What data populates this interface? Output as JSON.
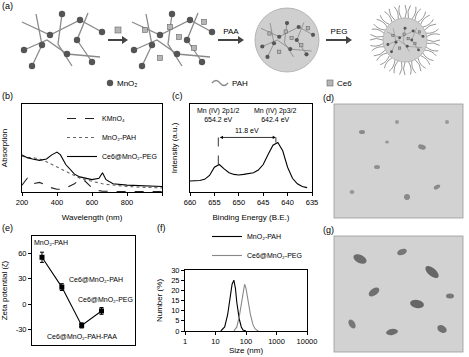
{
  "panels": {
    "a": {
      "label": "(a)",
      "legend": [
        "MnO₂",
        "PAH",
        "Ce6"
      ],
      "steps": [
        "PAA",
        "PEG"
      ]
    },
    "d": {
      "label": "(d)"
    },
    "g": {
      "label": "(g)"
    }
  },
  "chart_data": [
    {
      "label": "(b)",
      "type": "line",
      "x_label": "Wavelength (nm)",
      "y_label": "Absorption",
      "x": [
        200,
        230,
        260,
        300,
        340,
        370,
        400,
        420,
        450,
        500,
        530,
        560,
        600,
        640,
        660,
        680,
        720,
        800,
        900,
        1000
      ],
      "series": [
        {
          "name": "KMnO₄",
          "color": "#222222",
          "line_style": "dash",
          "values": [
            0.25,
            0.5,
            0.3,
            0.35,
            0.25,
            0.15,
            0.1,
            0.1,
            0.15,
            0.3,
            0.45,
            0.4,
            0.15,
            0.05,
            0.03,
            0.02,
            0.02,
            0.02,
            0.02,
            0.02
          ]
        },
        {
          "name": "MnO₂-PAH",
          "color": "#666666",
          "line_style": "dot",
          "values": [
            1.3,
            1.25,
            1.25,
            1.2,
            1.1,
            1.0,
            0.9,
            0.85,
            0.75,
            0.6,
            0.5,
            0.45,
            0.38,
            0.33,
            0.3,
            0.28,
            0.25,
            0.2,
            0.17,
            0.15
          ]
        },
        {
          "name": "Ce6@MnO₂-PEG",
          "color": "#000000",
          "line_style": "solid",
          "values": [
            1.35,
            1.25,
            1.2,
            1.15,
            1.2,
            1.35,
            1.45,
            1.35,
            1.0,
            0.65,
            0.55,
            0.5,
            0.45,
            0.5,
            0.7,
            0.45,
            0.3,
            0.25,
            0.22,
            0.2
          ]
        }
      ],
      "xlim": [
        200,
        1000
      ],
      "xticks": [
        200,
        400,
        600,
        800,
        1000
      ],
      "ylim": [
        0,
        3.2
      ],
      "yticks": [],
      "tick_labels": "x",
      "legend": "top right"
    },
    {
      "label": "(c)",
      "type": "line",
      "x_label": "Binding Energy (B.E.)",
      "y_label": "Intensity (a.u.)",
      "x": [
        660,
        659,
        658,
        657,
        656,
        655,
        654,
        653,
        652,
        651,
        650,
        649,
        648,
        647,
        646,
        645,
        644,
        643,
        642,
        641,
        640,
        639,
        638,
        637,
        636
      ],
      "values": [
        0.3,
        0.3,
        0.31,
        0.33,
        0.4,
        0.55,
        0.6,
        0.52,
        0.45,
        0.42,
        0.41,
        0.42,
        0.43,
        0.45,
        0.5,
        0.6,
        0.78,
        0.95,
        1.0,
        0.85,
        0.55,
        0.35,
        0.25,
        0.2,
        0.18
      ],
      "color": "#000000",
      "peaks": [
        {
          "label": "Mn (IV) 2p1/2",
          "position": 654.2,
          "position_label": "654.2 eV"
        },
        {
          "label": "Mn (IV) 2p3/2",
          "position": 642.4,
          "position_label": "642.4 eV"
        }
      ],
      "separation": {
        "value": 11.8,
        "label": "11.8 eV"
      },
      "xlim": [
        660,
        635
      ],
      "xticks": [
        660,
        655,
        650,
        645,
        640,
        635
      ],
      "ylim": [
        0.1,
        1.7
      ],
      "yticks": [],
      "tick_labels": "x"
    },
    {
      "label": "(e)",
      "type": "line",
      "marker": "square",
      "y_label": "Zeta potential (ζ)",
      "categories": [
        "MnO₂-PAH",
        "Ce6@MnO₂-PAH",
        "Ce6@MnO₂-PAH-PAA",
        "Ce6@MnO₂-PEG"
      ],
      "values": [
        55,
        20,
        -25,
        -8
      ],
      "errors": [
        6,
        4,
        3,
        4
      ],
      "color": "#000000",
      "ylim": [
        -48,
        80
      ],
      "yticks": [
        -30,
        0,
        30,
        60
      ],
      "tick_labels": "y"
    },
    {
      "label": "(f)",
      "type": "line",
      "x_label": "Size (nm)",
      "y_label": "Number (%)",
      "log": "x",
      "series": [
        {
          "name": "MnO₂-PAH",
          "color": "#000000",
          "line_style": "solid",
          "x": [
            15,
            20,
            25,
            30,
            35,
            40,
            45,
            50,
            60,
            70,
            80,
            100
          ],
          "values": [
            0,
            2,
            8,
            17,
            23,
            25,
            21,
            14,
            6,
            2,
            0.5,
            0
          ]
        },
        {
          "name": "Ce6@MnO₂-PEG",
          "color": "#888888",
          "line_style": "solid",
          "x": [
            40,
            50,
            60,
            70,
            80,
            90,
            100,
            120,
            140,
            170,
            200,
            250
          ],
          "values": [
            0,
            2,
            7,
            14,
            20,
            23,
            21,
            14,
            8,
            3,
            1,
            0
          ]
        }
      ],
      "xlim": [
        1,
        10000
      ],
      "xticks": [
        1,
        10,
        100,
        1000,
        10000
      ],
      "ylim": [
        0,
        30
      ],
      "yticks": [
        0,
        5,
        10,
        15,
        20,
        25,
        30
      ],
      "legend": "above right"
    }
  ]
}
